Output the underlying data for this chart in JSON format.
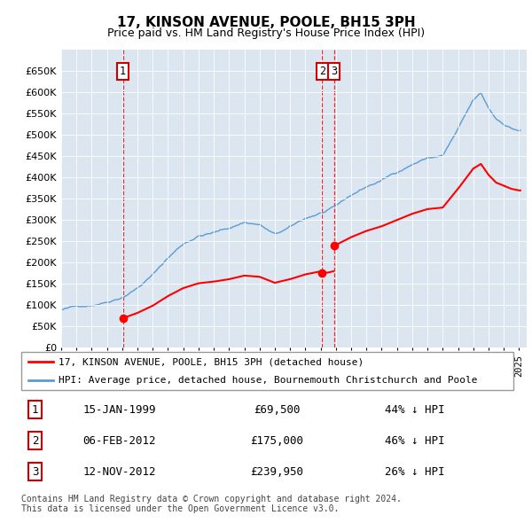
{
  "title": "17, KINSON AVENUE, POOLE, BH15 3PH",
  "subtitle": "Price paid vs. HM Land Registry's House Price Index (HPI)",
  "ylim": [
    0,
    700000
  ],
  "yticks": [
    0,
    50000,
    100000,
    150000,
    200000,
    250000,
    300000,
    350000,
    400000,
    450000,
    500000,
    550000,
    600000,
    650000
  ],
  "ytick_labels": [
    "£0",
    "£50K",
    "£100K",
    "£150K",
    "£200K",
    "£250K",
    "£300K",
    "£350K",
    "£400K",
    "£450K",
    "£500K",
    "£550K",
    "£600K",
    "£650K"
  ],
  "hpi_color": "#5b9bd5",
  "price_color": "#FF0000",
  "plot_bg_color": "#dce6f1",
  "sale_dates_num": [
    1999.042,
    2012.092,
    2012.867
  ],
  "sale_prices": [
    69500,
    175000,
    239950
  ],
  "sale_labels": [
    "1",
    "2",
    "3"
  ],
  "legend_house_label": "17, KINSON AVENUE, POOLE, BH15 3PH (detached house)",
  "legend_hpi_label": "HPI: Average price, detached house, Bournemouth Christchurch and Poole",
  "table_rows": [
    {
      "num": "1",
      "date": "15-JAN-1999",
      "price": "£69,500",
      "pct": "44% ↓ HPI"
    },
    {
      "num": "2",
      "date": "06-FEB-2012",
      "price": "£175,000",
      "pct": "46% ↓ HPI"
    },
    {
      "num": "3",
      "date": "12-NOV-2012",
      "price": "£239,950",
      "pct": "26% ↓ HPI"
    }
  ],
  "footer": "Contains HM Land Registry data © Crown copyright and database right 2024.\nThis data is licensed under the Open Government Licence v3.0.",
  "xmin": 1995.0,
  "xmax": 2025.5
}
